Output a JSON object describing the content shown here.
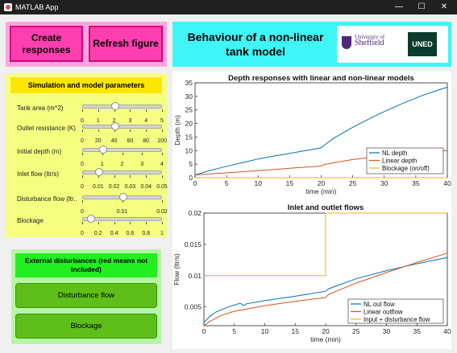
{
  "window": {
    "title": "MATLAB App",
    "minimize": "—",
    "maximize": "☐",
    "close": "✕"
  },
  "buttons": {
    "create": "Create responses",
    "refresh": "Refresh figure"
  },
  "header": {
    "title_line1": "Behaviour of a  non-linear",
    "title_line2": "tank model"
  },
  "logos": {
    "sheffield_line1": "University",
    "sheffield_line2": "of",
    "sheffield_line3": "Sheffield",
    "uned": "UNED"
  },
  "params": {
    "title": "Simulation and model parameters",
    "sliders": [
      {
        "label": "Tank area (m^2)",
        "value": 2,
        "min": 0,
        "max": 5,
        "ticks": [
          "0",
          "1",
          "2",
          "3",
          "4",
          "5"
        ]
      },
      {
        "label": "Outlet resistance (K)",
        "value": 40,
        "min": 0,
        "max": 100,
        "ticks": [
          "0",
          "20",
          "40",
          "60",
          "80",
          "100"
        ]
      },
      {
        "label": "Initial depth (m)",
        "value": 1,
        "min": 0,
        "max": 4,
        "ticks": [
          "0",
          "1",
          "2",
          "3",
          "4"
        ]
      },
      {
        "label": "Inlet flow (ltr/s)",
        "value": 0.01,
        "min": 0,
        "max": 0.05,
        "ticks": [
          "0",
          "0.01",
          "0.02",
          "0.03",
          "0.04",
          "0.05"
        ]
      },
      {
        "label": "Disturbance flow (ltr...",
        "value": 0.01,
        "min": 0,
        "max": 0.02,
        "ticks": [
          "0",
          "0.01",
          "0.02"
        ]
      },
      {
        "label": "Blockage",
        "value": 0.1,
        "min": 0,
        "max": 1,
        "ticks": [
          "0",
          "0.2",
          "0.4",
          "0.6",
          "0.8",
          "1"
        ]
      }
    ]
  },
  "disturbances": {
    "title": "External disturbances (red means not included)",
    "flow_button": "Disturbance flow",
    "blockage_button": "Blockage"
  },
  "colors": {
    "blue": "#0072bd",
    "orange": "#d95319",
    "yellow": "#edb120"
  },
  "chart_data": [
    {
      "type": "line",
      "title": "Depth responses with linear and non-linear models",
      "xlabel": "time (min)",
      "ylabel": "Depth (m)",
      "xlim": [
        0,
        40
      ],
      "ylim": [
        0,
        35
      ],
      "xticks": [
        0,
        5,
        10,
        15,
        20,
        25,
        30,
        35,
        40
      ],
      "yticks": [
        0,
        5,
        10,
        15,
        20,
        25,
        30,
        35
      ],
      "legend_position": "bottom-right",
      "series": [
        {
          "name": "NL depth",
          "color": "#0072bd",
          "x": [
            0,
            2,
            5,
            8,
            10,
            12,
            15,
            18,
            20,
            20.5,
            22,
            25,
            28,
            30,
            33,
            36,
            38,
            40
          ],
          "y": [
            1,
            2.4,
            4.2,
            5.8,
            6.9,
            7.8,
            9.0,
            10.2,
            11,
            12.0,
            14.6,
            18.6,
            22.2,
            24.4,
            27.5,
            30.3,
            31.9,
            33.4
          ]
        },
        {
          "name": "Linear depth",
          "color": "#d95319",
          "x": [
            0,
            5,
            10,
            15,
            20,
            20.5,
            25,
            30,
            35,
            40
          ],
          "y": [
            1,
            1.8,
            2.6,
            3.5,
            4.3,
            4.9,
            6.7,
            8.1,
            9.2,
            10.0
          ]
        },
        {
          "name": "Blockage (on/off)",
          "color": "#edb120",
          "x": [
            0,
            40
          ],
          "y": [
            0,
            0
          ]
        }
      ]
    },
    {
      "type": "line",
      "title": "Inlet and outlet flows",
      "xlabel": "time (min)",
      "ylabel": "Flow (ltr/s)",
      "xlim": [
        0,
        40
      ],
      "ylim": [
        0.002,
        0.02
      ],
      "xticks": [
        0,
        5,
        10,
        15,
        20,
        25,
        30,
        35,
        40
      ],
      "yticks": [
        "0.005",
        "0.01",
        "0.015",
        "0.02"
      ],
      "ytick_values": [
        0.005,
        0.01,
        0.015,
        0.02
      ],
      "legend_position": "bottom-right",
      "series": [
        {
          "name": "NL out flow",
          "color": "#0072bd",
          "x": [
            0,
            1,
            2,
            4,
            6,
            6.5,
            7,
            10,
            15,
            20,
            20.5,
            25,
            30,
            35,
            40
          ],
          "y": [
            0.0025,
            0.0035,
            0.0042,
            0.005,
            0.0056,
            0.0052,
            0.0055,
            0.006,
            0.0067,
            0.0075,
            0.0079,
            0.0095,
            0.0108,
            0.0119,
            0.0129
          ]
        },
        {
          "name": "Linear outflow",
          "color": "#d95319",
          "x": [
            0,
            1,
            3,
            5,
            10,
            15,
            20,
            20.5,
            25,
            30,
            35,
            40
          ],
          "y": [
            0.002,
            0.0027,
            0.0037,
            0.0043,
            0.0052,
            0.0059,
            0.0065,
            0.007,
            0.0088,
            0.0105,
            0.0121,
            0.0136
          ]
        },
        {
          "name": "Input + disturbance flow",
          "color": "#edb120",
          "x": [
            0,
            20,
            20,
            40
          ],
          "y": [
            0.01,
            0.01,
            0.02,
            0.02
          ]
        }
      ]
    }
  ]
}
